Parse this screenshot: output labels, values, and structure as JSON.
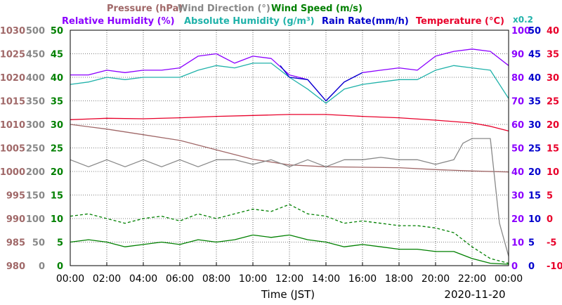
{
  "chart_data": {
    "type": "line",
    "date": "2020-11-20",
    "xlabel": "Time (JST)",
    "x_ticks": [
      "00:00",
      "02:00",
      "04:00",
      "06:00",
      "08:00",
      "10:00",
      "12:00",
      "14:00",
      "16:00",
      "18:00",
      "20:00",
      "22:00",
      "00:00"
    ],
    "grid": true,
    "legend_top": [
      {
        "text": "Pressure (hPa)",
        "color": "#a06868"
      },
      {
        "text": "Wind Direction (°)",
        "color": "#888888"
      },
      {
        "text": "Wind Speed (m/s)",
        "color": "#008000"
      }
    ],
    "legend_bottom": [
      {
        "text": "Relative Humidity (%)",
        "color": "#8b00ff"
      },
      {
        "text": "Absolute Humidity (g/m³)",
        "color": "#20b2aa"
      },
      {
        "text": "Rain Rate(mm/h)",
        "color": "#0000cc"
      },
      {
        "text": "Temperature (°C)",
        "color": "#e8002a"
      }
    ],
    "rain_scale_note": "x0.2",
    "axes": {
      "pressure": {
        "label": "Pressure (hPa)",
        "ticks": [
          "1030",
          "1025",
          "1020",
          "1015",
          "1010",
          "1005",
          "1000",
          "995",
          "990",
          "985",
          "980"
        ],
        "range": [
          980,
          1030
        ],
        "color": "#a06868"
      },
      "wind_direction": {
        "label": "Wind Direction (°)",
        "ticks": [
          "500",
          "450",
          "400",
          "350",
          "300",
          "250",
          "200",
          "150",
          "100",
          "50",
          "0"
        ],
        "range": [
          0,
          500
        ],
        "color": "#888888"
      },
      "wind_speed": {
        "label": "Wind Speed (m/s)",
        "ticks": [
          "50",
          "45",
          "40",
          "35",
          "30",
          "25",
          "20",
          "15",
          "10",
          "5",
          "0"
        ],
        "range": [
          0,
          50
        ],
        "color": "#008000"
      },
      "humidity": {
        "label": "Relative Humidity (%)",
        "ticks": [
          "100",
          "90",
          "80",
          "70",
          "60",
          "50",
          "40",
          "30",
          "20",
          "10",
          "0"
        ],
        "range": [
          0,
          100
        ],
        "color": "#8b00ff"
      },
      "rain_rate": {
        "label": "Rain Rate(mm/h)",
        "ticks": [
          "50",
          "45",
          "40",
          "35",
          "30",
          "25",
          "20",
          "15",
          "10",
          "5",
          "0"
        ],
        "range": [
          0,
          50
        ],
        "color": "#0000cc"
      },
      "temperature": {
        "label": "Temperature (°C)",
        "ticks": [
          "40",
          "35",
          "30",
          "25",
          "20",
          "15",
          "10",
          "5",
          "0",
          "-5",
          "-10"
        ],
        "range": [
          -10,
          40
        ],
        "color": "#e8002a"
      }
    },
    "series": [
      {
        "name": "Relative Humidity (%)",
        "color": "#8b00ff",
        "axis": "humidity",
        "x": [
          0,
          1,
          2,
          3,
          4,
          5,
          6,
          7,
          8,
          9,
          10,
          11,
          12,
          13,
          14,
          15,
          16,
          17,
          18,
          19,
          20,
          21,
          22,
          23,
          24
        ],
        "y": [
          81,
          81,
          83,
          82,
          83,
          83,
          84,
          89,
          90,
          86,
          89,
          88,
          81,
          79,
          70,
          78,
          82,
          83,
          84,
          83,
          89,
          91,
          92,
          91,
          85
        ]
      },
      {
        "name": "Absolute Humidity (g/m³)",
        "color": "#20b2aa",
        "axis": "humidity",
        "x": [
          0,
          1,
          2,
          3,
          4,
          5,
          6,
          7,
          8,
          9,
          10,
          11,
          12,
          13,
          14,
          15,
          16,
          17,
          18,
          19,
          20,
          21,
          22,
          23,
          24
        ],
        "y": [
          77,
          78,
          80,
          79,
          80,
          80,
          80,
          83,
          85,
          84,
          86,
          86,
          80,
          75,
          69,
          75,
          77,
          78,
          79,
          79,
          83,
          85,
          84,
          83,
          71
        ]
      },
      {
        "name": "Rain Rate(mm/h)",
        "color": "#0000cc",
        "axis": "humidity",
        "x": [
          11.5,
          12,
          13,
          14,
          15,
          16
        ],
        "y": [
          85,
          80,
          79,
          70,
          78,
          82
        ]
      },
      {
        "name": "Temperature (°C)",
        "color": "#e8002a",
        "axis": "temperature",
        "x": [
          0,
          2,
          4,
          6,
          8,
          10,
          12,
          14,
          16,
          18,
          20,
          22,
          23,
          24
        ],
        "y": [
          21.0,
          21.3,
          21.2,
          21.4,
          21.7,
          21.9,
          22.1,
          22.1,
          21.7,
          21.4,
          20.9,
          20.3,
          19.6,
          18.6
        ]
      },
      {
        "name": "Pressure (hPa)",
        "color": "#a06868",
        "axis": "pressure",
        "x": [
          0,
          2,
          4,
          6,
          8,
          10,
          12,
          14,
          16,
          18,
          20,
          22,
          24
        ],
        "y": [
          1010.0,
          1009.0,
          1007.8,
          1006.6,
          1004.6,
          1002.6,
          1001.4,
          1001.0,
          1000.9,
          1000.8,
          1000.4,
          1000.1,
          999.9
        ]
      },
      {
        "name": "Wind Direction (°)",
        "color": "#888888",
        "axis": "wind_direction",
        "x": [
          0,
          1,
          2,
          3,
          4,
          5,
          6,
          7,
          8,
          9,
          10,
          11,
          12,
          13,
          14,
          15,
          16,
          17,
          18,
          19,
          20,
          21,
          21.5,
          22,
          23,
          23.5,
          24
        ],
        "y": [
          225,
          210,
          225,
          210,
          225,
          210,
          225,
          210,
          225,
          225,
          215,
          225,
          210,
          225,
          210,
          225,
          225,
          230,
          225,
          225,
          215,
          225,
          260,
          270,
          270,
          90,
          20
        ]
      },
      {
        "name": "Wind Speed (m/s)",
        "color": "#008000",
        "axis": "wind_speed",
        "x": [
          0,
          1,
          2,
          3,
          4,
          5,
          6,
          7,
          8,
          9,
          10,
          11,
          12,
          13,
          14,
          15,
          16,
          17,
          18,
          19,
          20,
          21,
          22,
          23,
          24
        ],
        "y": [
          5.0,
          5.5,
          5.0,
          4.0,
          4.5,
          5.0,
          4.5,
          5.5,
          5.0,
          5.5,
          6.5,
          6.0,
          6.5,
          5.5,
          5.0,
          4.0,
          4.5,
          4.0,
          3.5,
          3.5,
          3.0,
          3.0,
          1.5,
          0.5,
          0.3
        ]
      },
      {
        "name": "Wind Speed (m/s)",
        "color": "#008000",
        "axis": "wind_speed",
        "style": "dashed",
        "x": [
          0,
          1,
          2,
          3,
          4,
          5,
          6,
          7,
          8,
          9,
          10,
          11,
          12,
          13,
          14,
          15,
          16,
          17,
          18,
          19,
          20,
          21,
          22,
          23,
          24
        ],
        "y": [
          10.5,
          11,
          10,
          9,
          10,
          10.5,
          9.5,
          11,
          10,
          11,
          12,
          11.5,
          13,
          11,
          10.5,
          9,
          9.5,
          9,
          8.5,
          8.5,
          8,
          7,
          4,
          1.5,
          0.5
        ]
      }
    ]
  }
}
